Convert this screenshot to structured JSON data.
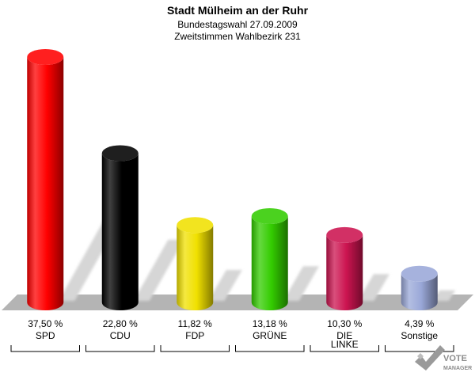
{
  "chart_data": {
    "type": "bar",
    "title": "Stadt Mülheim an der Ruhr",
    "subtitle_lines": [
      "Bundestagswahl 27.09.2009",
      "Zweitstimmen Wahlbezirk 231"
    ],
    "categories": [
      "SPD",
      "CDU",
      "FDP",
      "GRÜNE",
      "DIE LINKE",
      "Sonstige"
    ],
    "category_label_lines": [
      [
        "SPD"
      ],
      [
        "CDU"
      ],
      [
        "FDP"
      ],
      [
        "GRÜNE"
      ],
      [
        "DIE",
        "LINKE"
      ],
      [
        "Sonstige"
      ]
    ],
    "values": [
      37.5,
      22.8,
      11.82,
      13.18,
      10.3,
      4.39
    ],
    "value_labels": [
      "37,50 %",
      "22,80 %",
      "11,82 %",
      "13,18 %",
      "10,30 %",
      "4,39 %"
    ],
    "colors": [
      "#ff0000",
      "#000000",
      "#f0e000",
      "#33cc00",
      "#cc1450",
      "#9aa8d8"
    ],
    "ylim": [
      0,
      37.5
    ],
    "grid": false
  },
  "branding": {
    "logo_text_line1": "VOTE",
    "logo_text_line2": "MANAGER"
  }
}
